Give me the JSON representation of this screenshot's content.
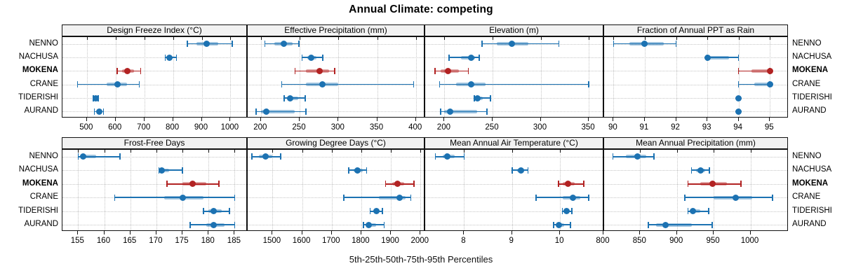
{
  "title": "Annual Climate: competing",
  "caption": "5th-25th-50th-75th-95th Percentiles",
  "sites": [
    "NENNO",
    "NACHUSA",
    "MOKENA",
    "CRANE",
    "TIDERISHI",
    "AURAND"
  ],
  "highlight_site": "MOKENA",
  "colors": {
    "series_default": "#1c72b2",
    "series_highlight": "#b22222",
    "grid": "#c5c5c5",
    "header_bg": "#f2f2f2",
    "border": "#111111"
  },
  "chart_data": {
    "type": "dotplot-interval-trellis",
    "title": "Annual Climate: competing",
    "xlabel": "5th-25th-50th-75th-95th Percentiles",
    "grid": "dotted",
    "legend_position": "none",
    "rows_of_panels": 2,
    "cols_of_panels": 4,
    "sites_top_to_bottom": [
      "NENNO",
      "NACHUSA",
      "MOKENA",
      "CRANE",
      "TIDERISHI",
      "AURAND"
    ],
    "percentiles_per_series": [
      "p5",
      "p25",
      "p50",
      "p75",
      "p95"
    ],
    "panels": [
      {
        "title": "Design Freeze Index (°C)",
        "ticks": [
          500,
          600,
          700,
          800,
          900,
          1000
        ],
        "domain": [
          415,
          1060
        ],
        "values": [
          [
            850,
            882,
            916,
            958,
            1006
          ],
          [
            773,
            781,
            788,
            799,
            812
          ],
          [
            605,
            622,
            642,
            664,
            687
          ],
          [
            468,
            570,
            607,
            640,
            683
          ],
          [
            522,
            527,
            531,
            536,
            540
          ],
          [
            526,
            534,
            543,
            551,
            558
          ]
        ]
      },
      {
        "title": "Effective Precipitation (mm)",
        "ticks": [
          200,
          250,
          300,
          350,
          400
        ],
        "domain": [
          183,
          412
        ],
        "values": [
          [
            205,
            217,
            230,
            241,
            249
          ],
          [
            253,
            260,
            265,
            272,
            280
          ],
          [
            244,
            258,
            276,
            288,
            295
          ],
          [
            227,
            258,
            279,
            300,
            397
          ],
          [
            230,
            234,
            238,
            248,
            257
          ],
          [
            194,
            200,
            207,
            244,
            258
          ]
        ]
      },
      {
        "title": "Elevation (m)",
        "ticks": [
          200,
          250,
          300,
          350
        ],
        "domain": [
          180,
          366
        ],
        "values": [
          [
            239,
            254,
            270,
            287,
            319
          ],
          [
            205,
            217,
            228,
            232,
            236
          ],
          [
            190,
            196,
            204,
            215,
            225
          ],
          [
            195,
            212,
            228,
            243,
            350
          ],
          [
            231,
            232,
            234,
            240,
            248
          ],
          [
            196,
            200,
            206,
            234,
            244
          ]
        ]
      },
      {
        "title": "Fraction of Annual PPT as Rain",
        "ticks": [
          90,
          91,
          92,
          93,
          94,
          95
        ],
        "domain": [
          89.7,
          95.6
        ],
        "values": [
          [
            90,
            90.5,
            91,
            91.6,
            92
          ],
          [
            93,
            93,
            93,
            93.7,
            94
          ],
          [
            94,
            94.4,
            95,
            95,
            95
          ],
          [
            94,
            94.5,
            95,
            95,
            95
          ],
          [
            94,
            94,
            94,
            94,
            94
          ],
          [
            94,
            94,
            94,
            94,
            94
          ]
        ]
      },
      {
        "title": "Frost-Free Days",
        "ticks": [
          155,
          160,
          165,
          170,
          175,
          180,
          185
        ],
        "domain": [
          152,
          187.5
        ],
        "values": [
          [
            155,
            155.4,
            156,
            158.4,
            163
          ],
          [
            170.5,
            171,
            171,
            172.5,
            175
          ],
          [
            172,
            175,
            177,
            179.5,
            182
          ],
          [
            162,
            171.5,
            175,
            179,
            185
          ],
          [
            179,
            180,
            181,
            182.5,
            184
          ],
          [
            176.5,
            179.5,
            181,
            183,
            185
          ]
        ]
      },
      {
        "title": "Growing Degree Days (°C)",
        "ticks": [
          1500,
          1600,
          1700,
          1800,
          1900,
          2000
        ],
        "domain": [
          1416,
          2016
        ],
        "values": [
          [
            1430,
            1455,
            1477,
            1500,
            1528
          ],
          [
            1758,
            1775,
            1788,
            1805,
            1818
          ],
          [
            1882,
            1905,
            1922,
            1945,
            1978
          ],
          [
            1741,
            1860,
            1930,
            1950,
            1967
          ],
          [
            1830,
            1840,
            1850,
            1861,
            1871
          ],
          [
            1808,
            1818,
            1826,
            1850,
            1877
          ]
        ]
      },
      {
        "title": "Mean Annual Air Temperature (°C)",
        "ticks": [
          8,
          9,
          10
        ],
        "domain": [
          7.19,
          10.92
        ],
        "values": [
          [
            7.4,
            7.55,
            7.65,
            7.8,
            8
          ],
          [
            9,
            9.1,
            9.18,
            9.26,
            9.33
          ],
          [
            9.97,
            10.06,
            10.17,
            10.3,
            10.5
          ],
          [
            9.5,
            10.05,
            10.27,
            10.42,
            10.6
          ],
          [
            10.05,
            10.09,
            10.13,
            10.18,
            10.25
          ],
          [
            9.87,
            9.93,
            9.98,
            10.08,
            10.22
          ]
        ]
      },
      {
        "title": "Mean Annual Precipitation (mm)",
        "ticks": [
          800,
          850,
          900,
          950,
          1000
        ],
        "domain": [
          801,
          1052
        ],
        "values": [
          [
            813,
            831,
            846,
            858,
            869
          ],
          [
            920,
            926,
            932,
            938,
            944
          ],
          [
            915,
            932,
            948,
            968,
            987
          ],
          [
            911,
            950,
            980,
            1002,
            1030
          ],
          [
            915,
            918,
            922,
            932,
            943
          ],
          [
            861,
            872,
            884,
            920,
            948
          ]
        ]
      }
    ]
  }
}
